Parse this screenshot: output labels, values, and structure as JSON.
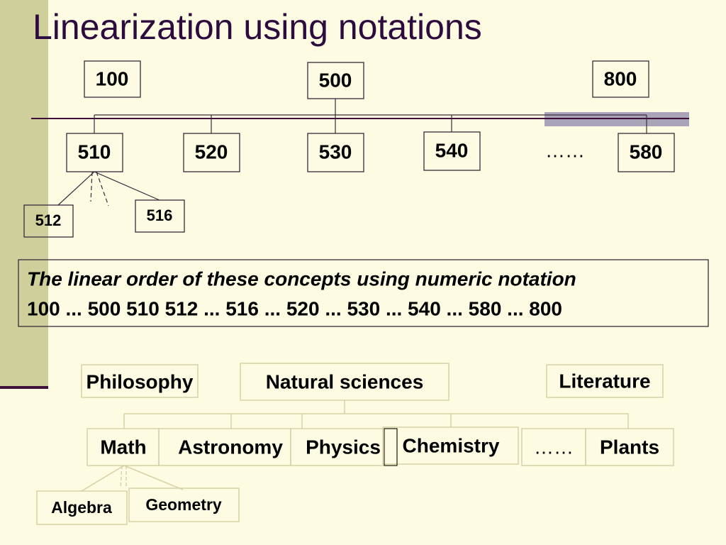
{
  "title": "Linearization using notations",
  "top_tree": {
    "nodes": [
      {
        "label": "100"
      },
      {
        "label": "500"
      },
      {
        "label": "800"
      },
      {
        "label": "510"
      },
      {
        "label": "520"
      },
      {
        "label": "530"
      },
      {
        "label": "540"
      },
      {
        "label": "……"
      },
      {
        "label": "580"
      },
      {
        "label": "512"
      },
      {
        "label": "516"
      }
    ]
  },
  "caption": {
    "heading": "The linear order of these concepts using numeric notation",
    "sequence": "100 ... 500 510 512 ... 516 ... 520 ... 530 ... 540 ... 580 ... 800"
  },
  "bottom_tree": {
    "nodes": [
      {
        "label": "Philosophy"
      },
      {
        "label": "Natural sciences"
      },
      {
        "label": "Literature"
      },
      {
        "label": "Math"
      },
      {
        "label": "Astronomy"
      },
      {
        "label": "Physics"
      },
      {
        "label": "Chemistry"
      },
      {
        "label": "……"
      },
      {
        "label": "Plants"
      },
      {
        "label": "Algebra"
      },
      {
        "label": "Geometry"
      }
    ]
  }
}
